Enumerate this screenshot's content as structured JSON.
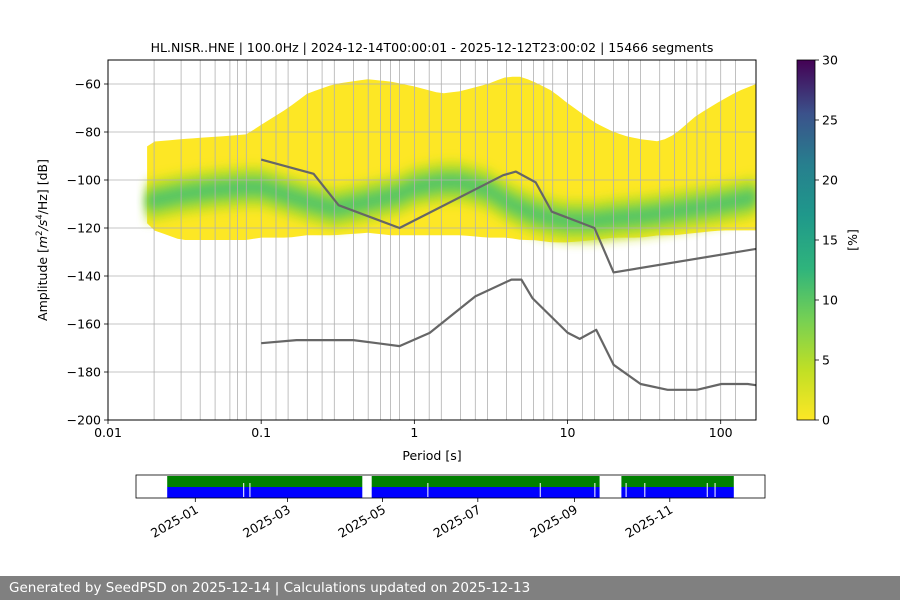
{
  "chart_data": {
    "type": "heatmap",
    "title": "HL.NISR..HNE | 100.0Hz | 2024-12-14T00:00:01 - 2025-12-12T23:00:02 | 15466 segments",
    "xlabel": "Period [s]",
    "ylabel_parts": {
      "prefix": "Amplitude [",
      "m": "m",
      "sup2": "2",
      "mid": "/s",
      "sup4": "4",
      "suffix": "/Hz] [dB]"
    },
    "xscale": "log",
    "xlim": [
      0.01,
      170
    ],
    "ylim": [
      -200,
      -50
    ],
    "xtick_labels": [
      "0.01",
      "0.1",
      "1",
      "10",
      "100"
    ],
    "ytick_labels": [
      "−200",
      "−180",
      "−160",
      "−140",
      "−120",
      "−100",
      "−80",
      "−60"
    ],
    "grid_periods": [
      0.02,
      0.03,
      0.04,
      0.05,
      0.0625,
      0.07,
      0.08,
      0.1,
      0.125,
      0.15,
      0.2,
      0.25,
      0.3,
      0.4,
      0.5,
      0.6,
      0.7,
      0.8,
      1,
      1.25,
      1.5,
      2,
      2.5,
      3,
      4,
      5,
      6,
      7,
      8,
      10,
      12.5,
      15,
      20,
      25,
      30,
      40,
      50,
      60,
      70,
      80,
      100,
      125
    ],
    "grid_db": [
      -200,
      -180,
      -160,
      -140,
      -120,
      -100,
      -80,
      -60
    ],
    "colorbar": {
      "label": "[%]",
      "range": [
        0,
        30
      ],
      "tick_labels": [
        "0",
        "5",
        "10",
        "15",
        "20",
        "25",
        "30"
      ],
      "colormap": "viridis_r"
    },
    "histogram_envelope": {
      "period": [
        0.018,
        0.02,
        0.03,
        0.05,
        0.08,
        0.1,
        0.15,
        0.2,
        0.3,
        0.5,
        0.7,
        1,
        1.5,
        2,
        3,
        4,
        5,
        6,
        8,
        10,
        15,
        20,
        25,
        30,
        40,
        50,
        70,
        100,
        130,
        170
      ],
      "upper_db": [
        -86,
        -84,
        -83,
        -82,
        -81,
        -77,
        -70,
        -64,
        -60,
        -58,
        -59,
        -61,
        -64,
        -63,
        -60,
        -57,
        -57,
        -59,
        -63,
        -68,
        -76,
        -80,
        -82,
        -83,
        -84,
        -81,
        -73,
        -67,
        -63,
        -60
      ],
      "lower_db": [
        -118,
        -121,
        -125,
        -125,
        -125,
        -124,
        -124,
        -123,
        -123,
        -122,
        -123,
        -123,
        -123,
        -123,
        -124,
        -124,
        -125,
        -125,
        -126,
        -126,
        -125,
        -124,
        -124,
        -124,
        -123,
        -123,
        -122,
        -121,
        -121,
        -121
      ],
      "mode_period": [
        0.018,
        0.03,
        0.05,
        0.08,
        0.1,
        0.2,
        0.3,
        0.5,
        0.8,
        1,
        1.5,
        2,
        3,
        4,
        5,
        6,
        8,
        10,
        15,
        20,
        30,
        50,
        100,
        170
      ],
      "mode_db": [
        -109,
        -106,
        -104,
        -103,
        -103,
        -109,
        -112,
        -109,
        -106,
        -103,
        -101,
        -101,
        -104,
        -109,
        -112,
        -114,
        -116,
        -117,
        -117,
        -116,
        -115,
        -113,
        -110,
        -107
      ]
    },
    "series": [
      {
        "period": [
          0.1,
          0.22,
          0.32,
          0.8,
          3.8,
          4.6,
          6.2,
          7.9,
          15,
          20,
          170
        ],
        "db": [
          -91.5,
          -97.4,
          -110.5,
          -120,
          -98,
          -96.5,
          -101,
          -113.2,
          -120,
          -138.5,
          -128.7
        ]
      },
      {
        "period": [
          0.1,
          0.17,
          0.4,
          0.8,
          1.26,
          2.5,
          4.3,
          5.0,
          5.9,
          10,
          12,
          15.4,
          20,
          30,
          45,
          70,
          101,
          150,
          170
        ],
        "db": [
          -168,
          -166.7,
          -166.7,
          -169.2,
          -163.7,
          -148.5,
          -141.5,
          -141.5,
          -149.2,
          -163.6,
          -166.2,
          -162.4,
          -177,
          -185,
          -187.4,
          -187.4,
          -185,
          -185,
          -185.5
        ]
      }
    ],
    "data_availability": {
      "tick_labels": [
        "2025-01",
        "2025-03",
        "2025-05",
        "2025-07",
        "2025-09",
        "2025-11"
      ],
      "range": [
        "2024-12-14",
        "2025-12-12"
      ],
      "bars": [
        {
          "name": "green",
          "color": "#008000",
          "spans": [
            [
              "2024-12-14",
              "2025-04-18"
            ],
            [
              "2025-04-24",
              "2025-09-17"
            ],
            [
              "2025-10-01",
              "2025-12-12"
            ]
          ]
        },
        {
          "name": "blue",
          "color": "#0000ff",
          "spans": [
            [
              "2024-12-14",
              "2025-04-18"
            ],
            [
              "2025-04-24",
              "2025-09-17"
            ],
            [
              "2025-10-01",
              "2025-12-12"
            ]
          ]
        }
      ],
      "gap_dates": [
        "2025-02-01",
        "2025-02-05",
        "2025-05-30",
        "2025-08-10",
        "2025-09-14",
        "2025-10-04",
        "2025-10-16",
        "2025-11-25",
        "2025-11-30"
      ]
    }
  },
  "footer": {
    "text": "Generated by SeedPSD on 2025-12-14 | Calculations updated on 2025-12-13"
  }
}
